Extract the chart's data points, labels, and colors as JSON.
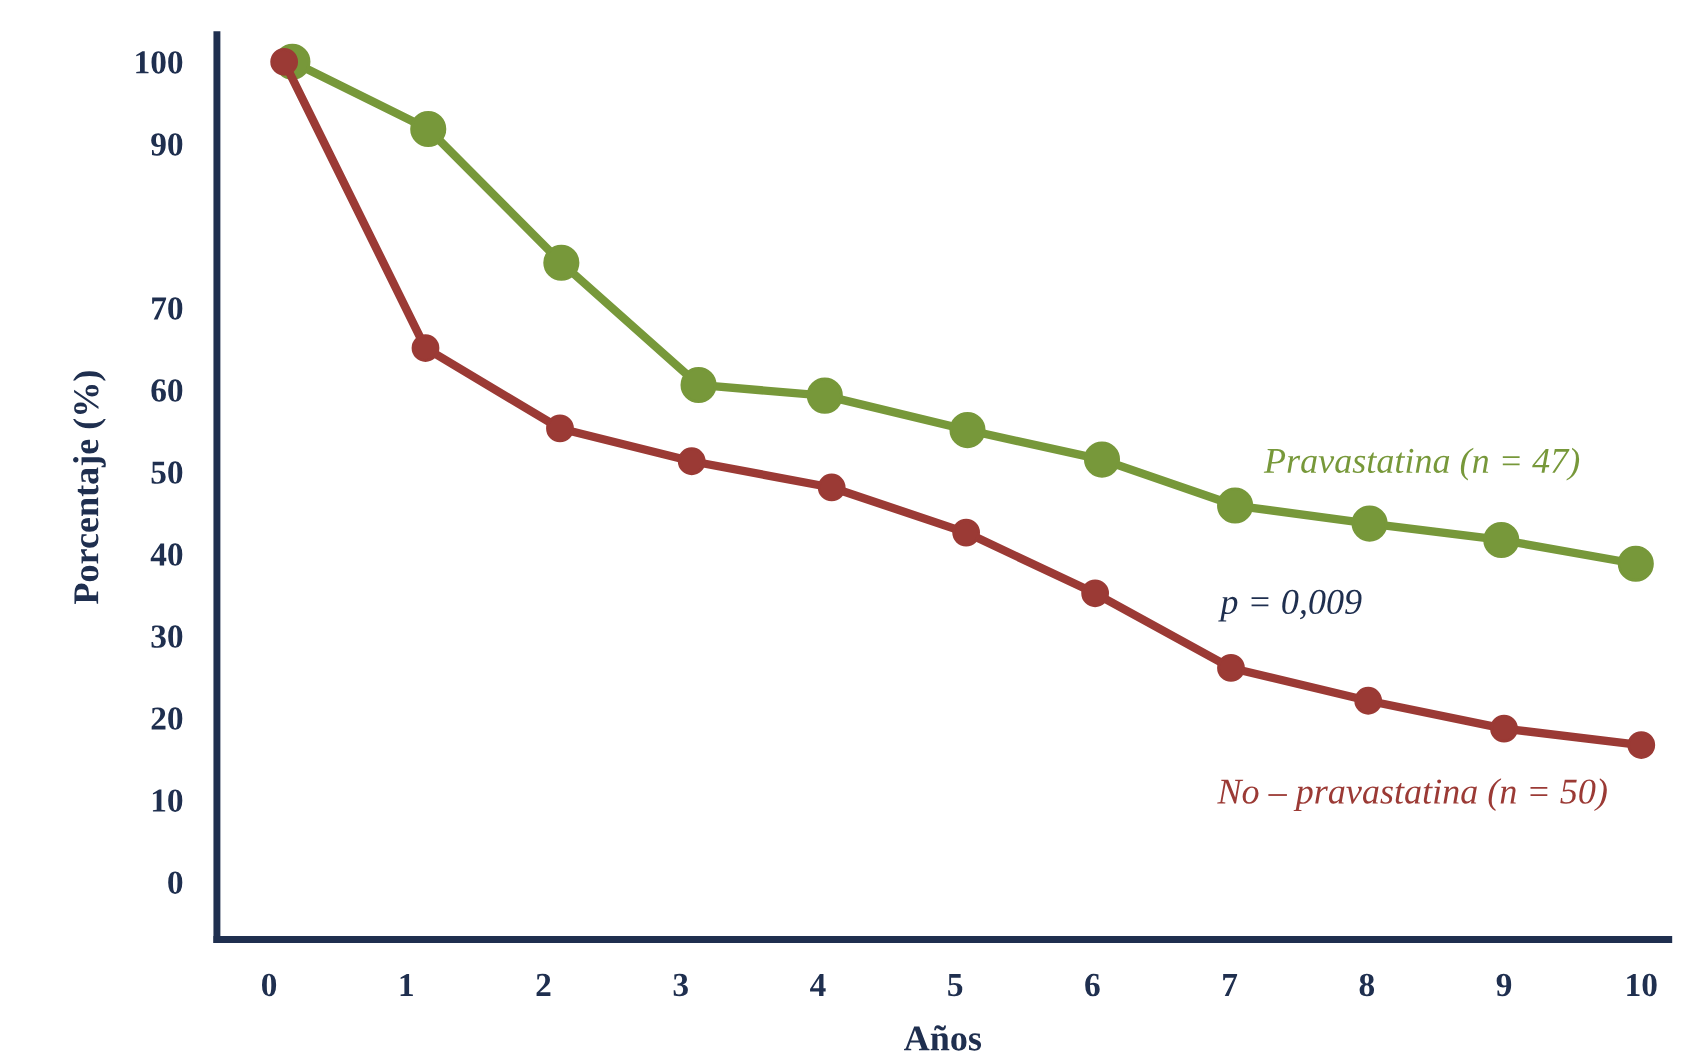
{
  "chart_data": {
    "type": "line",
    "xlabel": "Años",
    "ylabel": "Porcentaje (%)",
    "xlim": [
      -0.38,
      10.2
    ],
    "ylim": [
      -7,
      103.3
    ],
    "xticks": [
      0,
      1,
      2,
      3,
      4,
      5,
      6,
      7,
      8,
      9,
      10
    ],
    "yticks": [
      0,
      10,
      20,
      30,
      40,
      50,
      60,
      70,
      90,
      100
    ],
    "marker": "circle",
    "line_style": "solid",
    "grid": false,
    "legend": false,
    "series": [
      {
        "name": "Pravastatina (n = 47)",
        "color": "#77983a",
        "x": [
          0.17,
          1.16,
          2.13,
          3.13,
          4.05,
          5.09,
          6.07,
          7.04,
          8.02,
          8.98,
          9.96
        ],
        "values": [
          100,
          91.8,
          75.5,
          60.6,
          59.3,
          55.1,
          51.5,
          45.9,
          43.7,
          41.7,
          38.8
        ]
      },
      {
        "name": "No – pravastatina (n = 50)",
        "color": "#9b3a35",
        "x": [
          0.11,
          1.14,
          2.12,
          3.08,
          4.1,
          5.08,
          6.02,
          7.01,
          8.01,
          9.0,
          10.0
        ],
        "values": [
          100,
          65.1,
          55.3,
          51.3,
          48.1,
          42.6,
          35.2,
          26.1,
          22.1,
          18.7,
          16.7
        ]
      }
    ],
    "annotations": [
      "p = 0,009"
    ]
  }
}
